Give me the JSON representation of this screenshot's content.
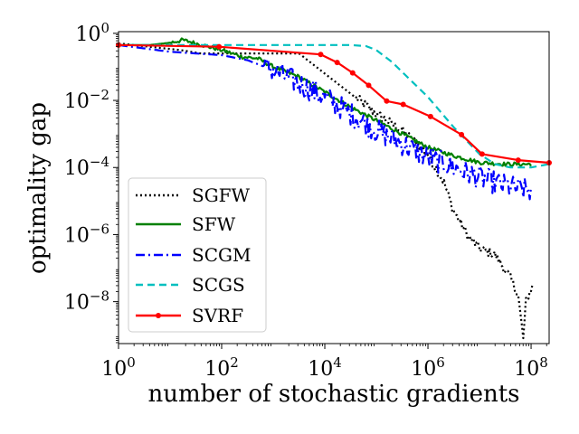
{
  "chart_data": {
    "type": "line",
    "xscale": "log",
    "yscale": "log",
    "xlabel": "number of stochastic gradients",
    "ylabel": "optimality gap",
    "xlim_exp": [
      0,
      8.35
    ],
    "ylim_exp": [
      -9.25,
      0.05
    ],
    "x_ticks": [
      {
        "base": "10",
        "exp": "0",
        "value": 0
      },
      {
        "base": "10",
        "exp": "2",
        "value": 2
      },
      {
        "base": "10",
        "exp": "4",
        "value": 4
      },
      {
        "base": "10",
        "exp": "6",
        "value": 6
      },
      {
        "base": "10",
        "exp": "8",
        "value": 8
      }
    ],
    "y_ticks": [
      {
        "base": "10",
        "exp": "0",
        "value": 0
      },
      {
        "base": "10",
        "exp": "−2",
        "value": -2
      },
      {
        "base": "10",
        "exp": "−4",
        "value": -4
      },
      {
        "base": "10",
        "exp": "−6",
        "value": -6
      },
      {
        "base": "10",
        "exp": "−8",
        "value": -8
      }
    ],
    "legend_position": "lower-left",
    "series": [
      {
        "name": "SGFW",
        "color": "#000000",
        "style": "dotted",
        "noise": 0.15,
        "noise_start": 4.6,
        "log10_x": [
          0,
          1.2,
          1.6,
          3.0,
          3.5,
          4.0,
          4.5,
          5.0,
          5.5,
          6.0,
          6.3,
          6.5,
          6.8,
          7.0,
          7.3,
          7.6,
          7.75,
          7.8,
          7.85,
          7.9,
          8.0,
          8.05
        ],
        "log10_y": [
          -0.3,
          -0.5,
          -0.6,
          -0.6,
          -0.6,
          -1.2,
          -1.8,
          -2.4,
          -2.9,
          -3.6,
          -4.4,
          -5.3,
          -6.1,
          -6.4,
          -6.6,
          -7.3,
          -7.8,
          -8.5,
          -9.1,
          -8.0,
          -7.6,
          -7.5
        ]
      },
      {
        "name": "SFW",
        "color": "#008000",
        "style": "solid",
        "noise": 0.06,
        "noise_start": 1.0,
        "log10_x": [
          0,
          0.6,
          1.0,
          1.25,
          1.5,
          2.0,
          2.4,
          2.7,
          3.0,
          3.5,
          4.0,
          4.5,
          5.0,
          5.5,
          6.0,
          6.5,
          7.0,
          7.5,
          8.0
        ],
        "log10_y": [
          -0.35,
          -0.35,
          -0.28,
          -0.2,
          -0.3,
          -0.5,
          -0.7,
          -0.75,
          -1.0,
          -1.3,
          -1.75,
          -2.2,
          -2.6,
          -3.0,
          -3.4,
          -3.65,
          -3.85,
          -3.9,
          -3.9
        ]
      },
      {
        "name": "SCGM",
        "color": "#0000ff",
        "style": "dashdot",
        "noise": 0.35,
        "noise_start": 2.8,
        "log10_x": [
          0,
          0.5,
          1.0,
          1.5,
          2.0,
          2.5,
          3.0,
          3.5,
          4.0,
          4.5,
          5.0,
          5.5,
          6.0,
          6.5,
          7.0,
          7.5,
          8.0
        ],
        "log10_y": [
          -0.35,
          -0.45,
          -0.55,
          -0.6,
          -0.65,
          -0.8,
          -1.1,
          -1.5,
          -1.9,
          -2.4,
          -2.9,
          -3.3,
          -3.7,
          -4.0,
          -4.3,
          -4.55,
          -4.7
        ]
      },
      {
        "name": "SCGS",
        "color": "#00bfbf",
        "style": "dashed",
        "noise": 0,
        "noise_start": 99,
        "log10_x": [
          0,
          1,
          2,
          3,
          4,
          4.5,
          4.8,
          5.0,
          5.3,
          5.6,
          6.0,
          6.5,
          7.0,
          7.3,
          7.6,
          8.0,
          8.35
        ],
        "log10_y": [
          -0.35,
          -0.35,
          -0.35,
          -0.35,
          -0.35,
          -0.35,
          -0.38,
          -0.5,
          -0.85,
          -1.3,
          -1.9,
          -2.8,
          -3.6,
          -3.9,
          -4.0,
          -4.0,
          -3.9
        ]
      },
      {
        "name": "SVRF",
        "color": "#ff0000",
        "style": "solid-marker",
        "noise": 0,
        "noise_start": 99,
        "log10_x": [
          0,
          1.95,
          3.92,
          4.24,
          4.54,
          4.85,
          5.2,
          5.52,
          6.05,
          6.65,
          7.05,
          7.75,
          8.35
        ],
        "log10_y": [
          -0.35,
          -0.4,
          -0.63,
          -0.87,
          -1.18,
          -1.55,
          -2.02,
          -2.12,
          -2.48,
          -3.02,
          -3.6,
          -3.78,
          -3.86
        ]
      }
    ]
  }
}
